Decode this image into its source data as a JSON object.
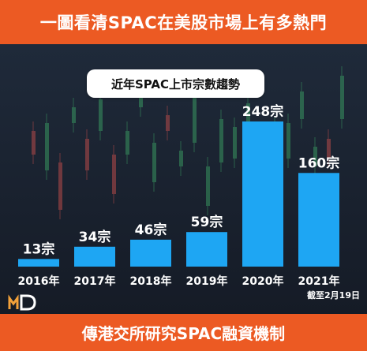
{
  "header": {
    "banner": "一圖看清SPAC在美股市場上有多熱門"
  },
  "footer": {
    "banner": "傳港交所研究SPAC融資機制"
  },
  "note": "截至2月19日",
  "colors": {
    "banner": "#ec5a23",
    "bar": "#1ea6f3",
    "background": "#1b2230"
  },
  "chart_data": {
    "type": "bar",
    "title": "近年SPAC上市宗數趨勢",
    "categories": [
      "2016年",
      "2017年",
      "2018年",
      "2019年",
      "2020年",
      "2021年"
    ],
    "values": [
      13,
      34,
      46,
      59,
      248,
      160
    ],
    "value_labels": [
      "13宗",
      "34宗",
      "46宗",
      "59宗",
      "248宗",
      "160宗"
    ],
    "ylim": [
      0,
      248
    ],
    "grid": false,
    "legend": "none"
  }
}
